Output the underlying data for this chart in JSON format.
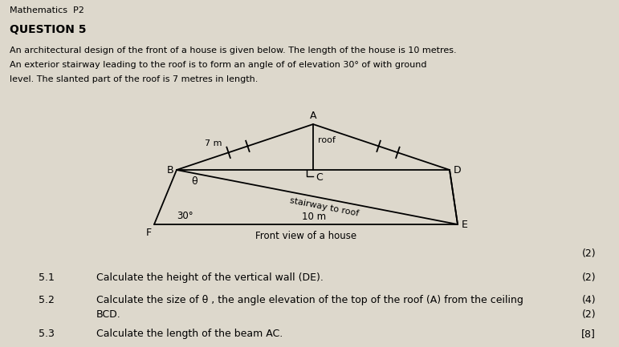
{
  "bg_color": "#ddd8cc",
  "title_math": "Mathematics  P2",
  "question_header": "QUESTION 5",
  "para1": "An architectural design of the front of a house is given below. The length of the house is 10 metres.",
  "para2": "An exterior stairway leading to the roof is to form an angle of of elevation 30° of with ground",
  "para3": "level. The slanted part of the roof is 7 metres in length.",
  "q51_num": "5.1",
  "q51_text": "Calculate the height of the vertical wall (DE).",
  "q51_marks": "(2)",
  "q52_num": "5.2",
  "q52_text": "Calculate the size of θ , the angle elevation of the top of the roof (A) from the ceiling",
  "q52_text2": "BCD.",
  "q52_marks": "(4)",
  "q53_num": "5.3",
  "q53_text": "Calculate the length of the beam AC.",
  "q53_marks": "[8]",
  "diagram_mark_above": "(2)"
}
